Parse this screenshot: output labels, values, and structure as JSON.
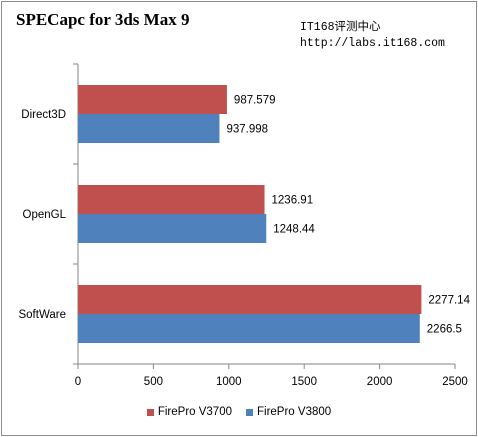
{
  "title": "SPECapc for 3ds Max 9",
  "source": {
    "line1": "IT168评测中心",
    "line2": "http://labs.it168.com"
  },
  "chart_data": {
    "type": "bar",
    "orientation": "horizontal",
    "categories": [
      "Direct3D",
      "OpenGL",
      "SoftWare"
    ],
    "series": [
      {
        "name": "FirePro V3700",
        "color": "#c0504d",
        "values": [
          987.579,
          1236.91,
          2277.14
        ],
        "labels": [
          "987.579",
          "1236.91",
          "2277.14"
        ]
      },
      {
        "name": "FirePro V3800",
        "color": "#4f81bd",
        "values": [
          937.998,
          1248.44,
          2266.5
        ],
        "labels": [
          "937.998",
          "1248.44",
          "2266.5"
        ]
      }
    ],
    "xlim": [
      0,
      2500
    ],
    "xticks": [
      "0",
      "500",
      "1000",
      "1500",
      "2000",
      "2500"
    ],
    "legend_position": "bottom"
  }
}
